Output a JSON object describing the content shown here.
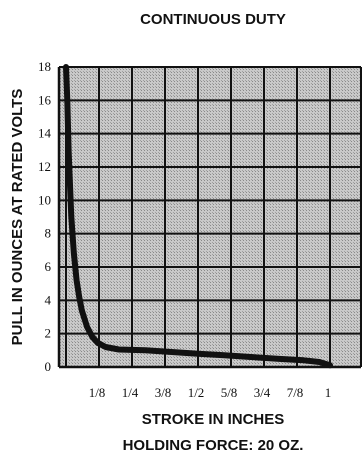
{
  "chart_data": {
    "type": "line",
    "title": "CONTINUOUS DUTY",
    "xlabel": "STROKE IN INCHES",
    "ylabel": "PULL IN OUNCES AT RATED VOLTS",
    "footer": "HOLDING FORCE: 20 OZ.",
    "xlim": [
      0,
      1
    ],
    "ylim": [
      0,
      18
    ],
    "xticks": [
      {
        "value": 0.125,
        "label": "1/8"
      },
      {
        "value": 0.25,
        "label": "1/4"
      },
      {
        "value": 0.375,
        "label": "3/8"
      },
      {
        "value": 0.5,
        "label": "1/2"
      },
      {
        "value": 0.625,
        "label": "5/8"
      },
      {
        "value": 0.75,
        "label": "3/4"
      },
      {
        "value": 0.875,
        "label": "7/8"
      },
      {
        "value": 1,
        "label": "1"
      }
    ],
    "yticks": [
      0,
      2,
      4,
      6,
      8,
      10,
      12,
      14,
      16,
      18
    ],
    "grid": true,
    "series": [
      {
        "x": [
          0.0,
          0.005,
          0.01,
          0.02,
          0.03,
          0.04,
          0.05,
          0.06,
          0.08,
          0.1,
          0.12,
          0.15,
          0.2,
          0.3,
          0.4,
          0.5,
          0.6,
          0.7,
          0.8,
          0.9,
          0.96,
          1.0
        ],
        "y": [
          18,
          16.0,
          13.0,
          9.0,
          6.8,
          5.2,
          4.2,
          3.4,
          2.4,
          1.8,
          1.45,
          1.2,
          1.05,
          1.0,
          0.9,
          0.8,
          0.7,
          0.6,
          0.5,
          0.4,
          0.3,
          0.1
        ]
      }
    ]
  }
}
